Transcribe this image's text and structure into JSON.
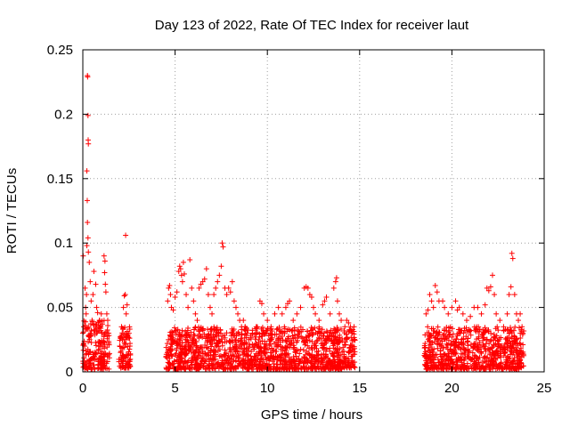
{
  "chart_data": {
    "type": "scatter",
    "title": "Day 123 of 2022, Rate Of TEC Index for receiver laut",
    "xlabel": "GPS time / hours",
    "ylabel": "ROTI / TECUs",
    "xlim": [
      0,
      25
    ],
    "ylim": [
      0,
      0.25
    ],
    "xticks": [
      0,
      5,
      10,
      15,
      20,
      25
    ],
    "xtick_labels": [
      "0",
      "5",
      "10",
      "15",
      "20",
      "25"
    ],
    "yticks": [
      0,
      0.05,
      0.1,
      0.15,
      0.2,
      0.25
    ],
    "ytick_labels": [
      "0",
      "0.05",
      "0.1",
      "0.15",
      "0.2",
      "0.25"
    ],
    "grid": true,
    "marker": "+",
    "color": "#ff0000",
    "series": [
      {
        "name": "ROTI",
        "points": [
          [
            0.0,
            0.03
          ],
          [
            0.02,
            0.09
          ],
          [
            0.05,
            0.035
          ],
          [
            0.1,
            0.02
          ],
          [
            0.12,
            0.065
          ],
          [
            0.15,
            0.05
          ],
          [
            0.18,
            0.045
          ],
          [
            0.2,
            0.06
          ],
          [
            0.22,
            0.098
          ],
          [
            0.25,
            0.23
          ],
          [
            0.26,
            0.229
          ],
          [
            0.28,
            0.199
          ],
          [
            0.29,
            0.18
          ],
          [
            0.3,
            0.177
          ],
          [
            0.22,
            0.156
          ],
          [
            0.24,
            0.133
          ],
          [
            0.25,
            0.116
          ],
          [
            0.28,
            0.104
          ],
          [
            0.3,
            0.093
          ],
          [
            0.35,
            0.085
          ],
          [
            0.4,
            0.07
          ],
          [
            0.45,
            0.055
          ],
          [
            0.5,
            0.04
          ],
          [
            0.55,
            0.06
          ],
          [
            0.6,
            0.078
          ],
          [
            0.7,
            0.068
          ],
          [
            0.75,
            0.05
          ],
          [
            0.8,
            0.046
          ],
          [
            0.9,
            0.04
          ],
          [
            1.0,
            0.045
          ],
          [
            1.1,
            0.02
          ],
          [
            1.15,
            0.09
          ],
          [
            1.2,
            0.086
          ],
          [
            1.18,
            0.077
          ],
          [
            1.22,
            0.068
          ],
          [
            1.25,
            0.062
          ],
          [
            1.3,
            0.045
          ],
          [
            1.35,
            0.04
          ],
          [
            1.4,
            0.03
          ],
          [
            2.0,
            0.02
          ],
          [
            2.1,
            0.035
          ],
          [
            2.2,
            0.05
          ],
          [
            2.25,
            0.059
          ],
          [
            2.3,
            0.06
          ],
          [
            2.32,
            0.106
          ],
          [
            2.35,
            0.045
          ],
          [
            2.4,
            0.052
          ],
          [
            2.5,
            0.03
          ],
          [
            2.55,
            0.02
          ],
          [
            4.6,
            0.055
          ],
          [
            4.65,
            0.065
          ],
          [
            4.7,
            0.067
          ],
          [
            4.75,
            0.06
          ],
          [
            4.8,
            0.05
          ],
          [
            4.9,
            0.048
          ],
          [
            5.0,
            0.058
          ],
          [
            5.1,
            0.062
          ],
          [
            5.2,
            0.078
          ],
          [
            5.25,
            0.082
          ],
          [
            5.3,
            0.08
          ],
          [
            5.35,
            0.075
          ],
          [
            5.4,
            0.07
          ],
          [
            5.45,
            0.085
          ],
          [
            5.5,
            0.076
          ],
          [
            5.6,
            0.06
          ],
          [
            5.7,
            0.05
          ],
          [
            5.8,
            0.087
          ],
          [
            5.9,
            0.065
          ],
          [
            6.0,
            0.055
          ],
          [
            6.1,
            0.045
          ],
          [
            6.2,
            0.04
          ],
          [
            6.3,
            0.065
          ],
          [
            6.4,
            0.068
          ],
          [
            6.5,
            0.07
          ],
          [
            6.6,
            0.072
          ],
          [
            6.7,
            0.08
          ],
          [
            6.8,
            0.06
          ],
          [
            6.9,
            0.05
          ],
          [
            7.0,
            0.045
          ],
          [
            7.1,
            0.06
          ],
          [
            7.2,
            0.065
          ],
          [
            7.3,
            0.07
          ],
          [
            7.4,
            0.075
          ],
          [
            7.5,
            0.082
          ],
          [
            7.55,
            0.1
          ],
          [
            7.6,
            0.097
          ],
          [
            7.7,
            0.065
          ],
          [
            7.8,
            0.06
          ],
          [
            7.9,
            0.065
          ],
          [
            8.0,
            0.062
          ],
          [
            8.1,
            0.07
          ],
          [
            8.2,
            0.055
          ],
          [
            8.3,
            0.05
          ],
          [
            8.4,
            0.045
          ],
          [
            8.5,
            0.04
          ],
          [
            8.6,
            0.035
          ],
          [
            8.7,
            0.04
          ],
          [
            8.8,
            0.035
          ],
          [
            8.9,
            0.03
          ],
          [
            9.0,
            0.025
          ],
          [
            9.2,
            0.03
          ],
          [
            9.4,
            0.035
          ],
          [
            9.6,
            0.055
          ],
          [
            9.7,
            0.053
          ],
          [
            9.8,
            0.045
          ],
          [
            10.0,
            0.04
          ],
          [
            10.2,
            0.035
          ],
          [
            10.4,
            0.045
          ],
          [
            10.6,
            0.05
          ],
          [
            10.8,
            0.045
          ],
          [
            11.0,
            0.05
          ],
          [
            11.1,
            0.053
          ],
          [
            11.2,
            0.055
          ],
          [
            11.4,
            0.04
          ],
          [
            11.6,
            0.045
          ],
          [
            11.8,
            0.05
          ],
          [
            12.0,
            0.065
          ],
          [
            12.1,
            0.066
          ],
          [
            12.2,
            0.065
          ],
          [
            12.3,
            0.06
          ],
          [
            12.4,
            0.058
          ],
          [
            12.5,
            0.05
          ],
          [
            12.6,
            0.045
          ],
          [
            12.8,
            0.04
          ],
          [
            13.0,
            0.052
          ],
          [
            13.1,
            0.055
          ],
          [
            13.2,
            0.058
          ],
          [
            13.4,
            0.045
          ],
          [
            13.6,
            0.065
          ],
          [
            13.7,
            0.07
          ],
          [
            13.75,
            0.073
          ],
          [
            13.8,
            0.055
          ],
          [
            13.9,
            0.045
          ],
          [
            14.0,
            0.04
          ],
          [
            14.2,
            0.035
          ],
          [
            14.3,
            0.04
          ],
          [
            14.4,
            0.038
          ],
          [
            14.5,
            0.035
          ],
          [
            14.6,
            0.03
          ],
          [
            14.7,
            0.035
          ],
          [
            18.6,
            0.045
          ],
          [
            18.7,
            0.048
          ],
          [
            18.8,
            0.06
          ],
          [
            18.9,
            0.055
          ],
          [
            19.0,
            0.05
          ],
          [
            19.1,
            0.067
          ],
          [
            19.2,
            0.062
          ],
          [
            19.3,
            0.055
          ],
          [
            19.5,
            0.055
          ],
          [
            19.6,
            0.05
          ],
          [
            19.8,
            0.045
          ],
          [
            20.0,
            0.05
          ],
          [
            20.2,
            0.055
          ],
          [
            20.3,
            0.048
          ],
          [
            20.4,
            0.05
          ],
          [
            20.6,
            0.045
          ],
          [
            20.8,
            0.04
          ],
          [
            21.0,
            0.043
          ],
          [
            21.2,
            0.05
          ],
          [
            21.4,
            0.05
          ],
          [
            21.6,
            0.045
          ],
          [
            21.8,
            0.052
          ],
          [
            21.9,
            0.065
          ],
          [
            22.0,
            0.063
          ],
          [
            22.1,
            0.066
          ],
          [
            22.2,
            0.075
          ],
          [
            22.3,
            0.06
          ],
          [
            22.4,
            0.045
          ],
          [
            22.6,
            0.04
          ],
          [
            22.8,
            0.035
          ],
          [
            23.0,
            0.045
          ],
          [
            23.1,
            0.06
          ],
          [
            23.2,
            0.066
          ],
          [
            23.25,
            0.092
          ],
          [
            23.3,
            0.088
          ],
          [
            23.4,
            0.06
          ],
          [
            23.5,
            0.045
          ],
          [
            23.6,
            0.04
          ],
          [
            23.7,
            0.045
          ],
          [
            23.8,
            0.035
          ],
          [
            23.85,
            0.03
          ]
        ],
        "clusters": [
          {
            "x_start": 0.0,
            "x_end": 1.45,
            "y_low": 0.002,
            "y_high": 0.04
          },
          {
            "x_start": 1.95,
            "x_end": 2.6,
            "y_low": 0.003,
            "y_high": 0.035
          },
          {
            "x_start": 4.5,
            "x_end": 14.1,
            "y_low": 0.002,
            "y_high": 0.035
          },
          {
            "x_start": 14.1,
            "x_end": 14.75,
            "y_low": 0.003,
            "y_high": 0.033
          },
          {
            "x_start": 18.5,
            "x_end": 23.9,
            "y_low": 0.002,
            "y_high": 0.035
          }
        ]
      }
    ]
  }
}
